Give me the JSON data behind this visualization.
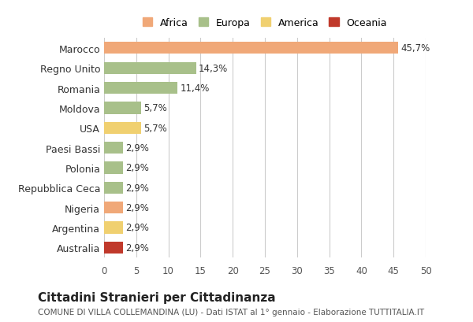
{
  "categories": [
    "Marocco",
    "Regno Unito",
    "Romania",
    "Moldova",
    "USA",
    "Paesi Bassi",
    "Polonia",
    "Repubblica Ceca",
    "Nigeria",
    "Argentina",
    "Australia"
  ],
  "values": [
    45.7,
    14.3,
    11.4,
    5.7,
    5.7,
    2.9,
    2.9,
    2.9,
    2.9,
    2.9,
    2.9
  ],
  "labels": [
    "45,7%",
    "14,3%",
    "11,4%",
    "5,7%",
    "5,7%",
    "2,9%",
    "2,9%",
    "2,9%",
    "2,9%",
    "2,9%",
    "2,9%"
  ],
  "colors": [
    "#F0A878",
    "#A8C08A",
    "#A8C08A",
    "#A8C08A",
    "#F0D070",
    "#A8C08A",
    "#A8C08A",
    "#A8C08A",
    "#F0A878",
    "#F0D070",
    "#C0392B"
  ],
  "legend_labels": [
    "Africa",
    "Europa",
    "America",
    "Oceania"
  ],
  "legend_colors": [
    "#F0A878",
    "#A8C08A",
    "#F0D070",
    "#C0392B"
  ],
  "xlim": [
    0,
    50
  ],
  "xticks": [
    0,
    5,
    10,
    15,
    20,
    25,
    30,
    35,
    40,
    45,
    50
  ],
  "title": "Cittadini Stranieri per Cittadinanza",
  "subtitle": "COMUNE DI VILLA COLLEMANDINA (LU) - Dati ISTAT al 1° gennaio - Elaborazione TUTTITALIA.IT",
  "bg_color": "#FFFFFF",
  "grid_color": "#CCCCCC"
}
